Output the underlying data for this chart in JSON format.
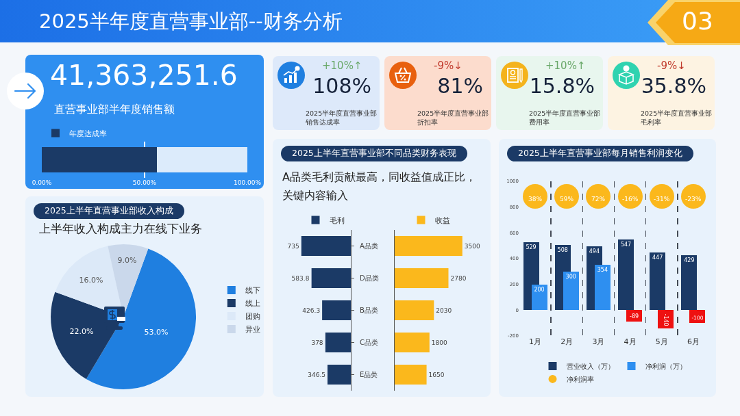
{
  "chart_data": [
    {
      "type": "other",
      "title": "2025半年度直营事业部--财务分析",
      "annotations": [
        "03"
      ]
    },
    {
      "type": "bar",
      "title": "41,363,251.6",
      "subtitle": "直营事业部半年度销售额",
      "orientation": "horizontal",
      "stacked": true,
      "categories": [
        null
      ],
      "series": [
        {
          "name": "年度达成率",
          "color": "#1b3a66",
          "values": [
            56
          ]
        },
        {
          "color": "#dcebfb",
          "values": [
            44
          ]
        }
      ],
      "xlim": [
        0,
        100
      ],
      "xticks": [
        {
          "value": 0,
          "label": "0.00%"
        },
        {
          "value": 50,
          "label": "50.00%"
        },
        {
          "value": 100,
          "label": "100.00%"
        }
      ],
      "grid": "x",
      "legend": "top left"
    },
    {
      "type": "other",
      "title": "108%",
      "subtitle": "2025半年度直营事业部销售达成率",
      "annotations": [
        "+10%↑"
      ],
      "color": "#6aa86a"
    },
    {
      "type": "other",
      "title": "81%",
      "subtitle": "2025半年度直营事业部折扣率",
      "annotations": [
        "-9%↓"
      ],
      "color": "#c0392b"
    },
    {
      "type": "other",
      "title": "15.8%",
      "subtitle": "2025半年度直营事业部费用率",
      "annotations": [
        "+10%↑"
      ],
      "color": "#6aa86a"
    },
    {
      "type": "other",
      "title": "35.8%",
      "subtitle": "2025半年度直营事业部毛利率",
      "annotations": [
        "-9%↓"
      ],
      "color": "#c0392b"
    },
    {
      "type": "pie",
      "title": "2025上半年直营事业部收入构成",
      "subtitle": "上半年收入构成主力在线下业务",
      "categories": [
        "线下",
        "线上",
        "团购",
        "异业"
      ],
      "values": [
        53,
        22,
        16,
        9
      ],
      "colors": [
        "#1f7fe0",
        "#1b3a66",
        "#dce9f8",
        "#cad8eb"
      ],
      "value_labels": [
        "53.0%",
        "22.0%",
        "16.0%",
        "9.0%"
      ],
      "legend": "right"
    },
    {
      "type": "bar",
      "title": "2025上半年直营事业部不同品类财务表现",
      "subtitle": "A品类毛利贡献最高，同收益值成正比，关键内容输入",
      "orientation": "horizontal",
      "categories": [
        "A品类",
        "D品类",
        "B品类",
        "C品类",
        "E品类"
      ],
      "series": [
        {
          "name": "毛利",
          "color": "#1b3a66",
          "values": [
            735,
            583.8,
            426.3,
            378,
            346.5
          ]
        }
      ],
      "data_labels": true,
      "legend": "top"
    },
    {
      "type": "bar",
      "orientation": "horizontal",
      "categories": [
        null,
        null,
        null,
        null,
        null
      ],
      "series": [
        {
          "name": "收益",
          "color": "#fbb81c",
          "values": [
            3500,
            2780,
            2030,
            1800,
            1650
          ]
        }
      ],
      "data_labels": true,
      "legend": "top"
    },
    {
      "type": "bar",
      "title": "2025上半年直营事业部每月销售利润变化",
      "categories": [
        "1月",
        "2月",
        "3月",
        "4月",
        "5月",
        "6月"
      ],
      "series": [
        {
          "name": "营业收入（万）",
          "color": "#1b3a66",
          "values": [
            529,
            508,
            494,
            547,
            447,
            429
          ]
        },
        {
          "name": "净利润（万）",
          "colors": [
            "#2e8ff0",
            "#2e8ff0",
            "#2e8ff0",
            "#ee1111",
            "#ee1111",
            "#ee1111"
          ],
          "values": [
            200,
            300,
            354,
            -89,
            -140,
            -100
          ]
        },
        {
          "name": "净利润率",
          "type": "scatter",
          "color": "#fbb81c",
          "values": [
            null,
            null,
            null,
            null,
            null,
            null
          ]
        }
      ],
      "annotations": [
        "38%",
        "59%",
        "72%",
        "-16%",
        "-31%",
        "-23%"
      ],
      "ylim": [
        -200,
        1000
      ],
      "yticks": [
        -200,
        0,
        200,
        400,
        600,
        800,
        1000
      ],
      "grid": "x",
      "data_labels": true,
      "legend": "bottom"
    }
  ]
}
